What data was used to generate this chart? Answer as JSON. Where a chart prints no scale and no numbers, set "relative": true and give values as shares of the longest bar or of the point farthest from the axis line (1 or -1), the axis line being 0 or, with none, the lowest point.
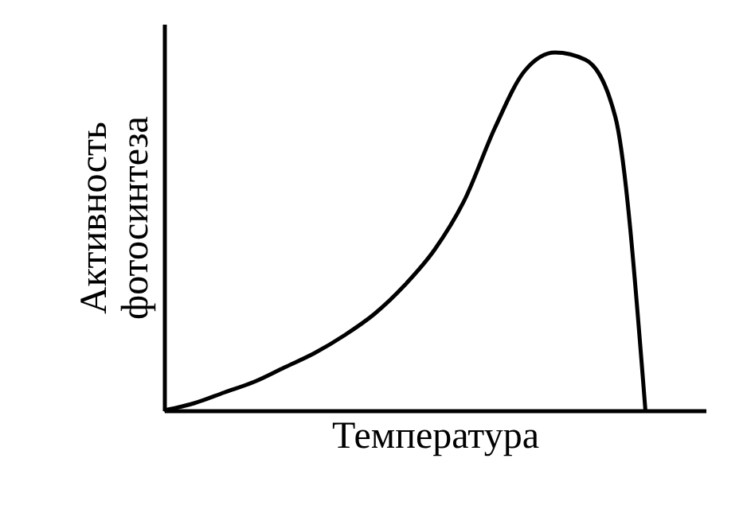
{
  "chart_data": {
    "type": "line",
    "relative": true,
    "xlabel": "Температура",
    "ylabel": "Активность фотосинтеза",
    "color": "#000000",
    "categories": [
      null,
      null,
      null,
      null,
      null,
      null,
      null,
      null,
      null,
      null,
      null,
      null,
      null,
      null,
      null,
      null,
      null,
      null,
      null
    ],
    "values": [
      0,
      0.02,
      0.05,
      0.08,
      0.12,
      0.16,
      0.21,
      0.27,
      0.35,
      0.45,
      0.59,
      0.79,
      0.95,
      1.0,
      0.98,
      0.82,
      0,
      null,
      null
    ]
  }
}
